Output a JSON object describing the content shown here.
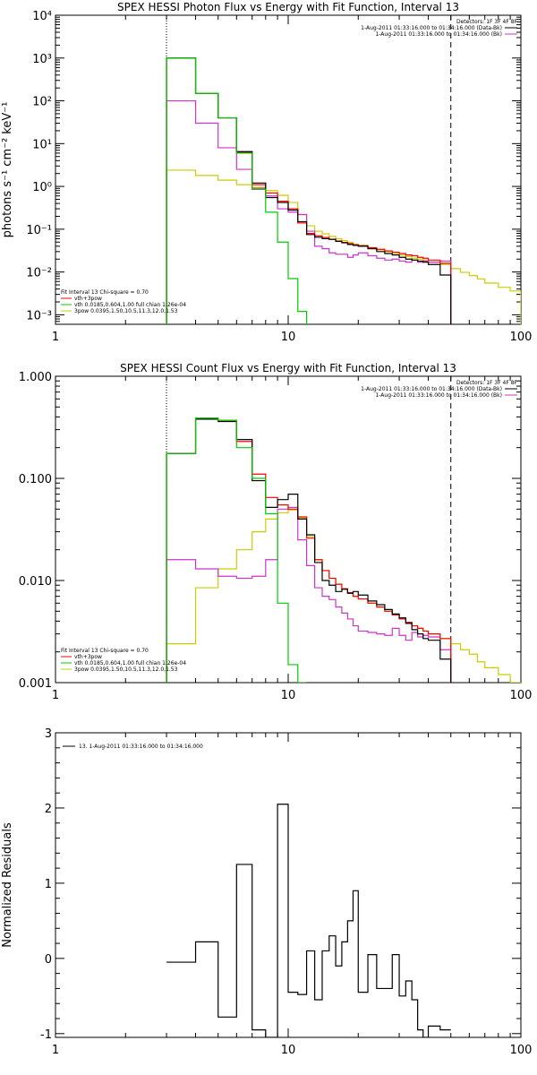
{
  "chart_data": [
    {
      "type": "line",
      "step": true,
      "title": "SPEX HESSI Photon Flux vs Energy with Fit Function, Interval 13",
      "xlabel": "",
      "ylabel": "photons s⁻¹ cm⁻² keV⁻¹",
      "xscale": "log",
      "yscale": "log",
      "xlim": [
        1,
        100
      ],
      "ylim": [
        0.0006,
        10000
      ],
      "xticks": [
        {
          "v": 1,
          "label": "1"
        },
        {
          "v": 10,
          "label": "10"
        },
        {
          "v": 100,
          "label": "100"
        }
      ],
      "yticks": [
        {
          "v": 0.001,
          "label": "10⁻³"
        },
        {
          "v": 0.01,
          "label": "10⁻²"
        },
        {
          "v": 0.1,
          "label": "10⁻¹"
        },
        {
          "v": 1,
          "label": "10⁰"
        },
        {
          "v": 10,
          "label": "10¹"
        },
        {
          "v": 100,
          "label": "10²"
        },
        {
          "v": 1000,
          "label": "10³"
        },
        {
          "v": 10000,
          "label": "10⁴"
        }
      ],
      "vlines": [
        {
          "x": 3,
          "style": "dotted"
        },
        {
          "x": 50,
          "style": "dashed"
        }
      ],
      "legend_top_right": [
        {
          "text": "Detectors: 1F 3F 4F 8F"
        },
        {
          "text": "1-Aug-2011 01:33:16.000 to 01:34:16.000 (Data-Bk)",
          "color": "#000000"
        },
        {
          "text": "1-Aug-2011 01:33:16.000 to 01:34:16.000 (Bk)",
          "color": "#cc33cc"
        }
      ],
      "legend_bottom_left": [
        {
          "text": "Fit Interval 13   Chi-square = 0.70"
        },
        {
          "text": "vth+3pow",
          "color": "#ff0000"
        },
        {
          "text": "vth 0.0185,0.604,1.00   full chian 1.26e-04",
          "color": "#00cc00"
        },
        {
          "text": "3pow 0.0395,1.50,10.5,11.3,12.0,1.53",
          "color": "#cccc00"
        }
      ],
      "edges": [
        3,
        4,
        5,
        6,
        7,
        8,
        9,
        10,
        11,
        12,
        13,
        14,
        15,
        16,
        17,
        18,
        19,
        20,
        22,
        24,
        26,
        28,
        30,
        32,
        34,
        36,
        38,
        40,
        45,
        50,
        55,
        60,
        65,
        70,
        80,
        90,
        100
      ],
      "series": [
        {
          "name": "Data-Bk",
          "color": "#000000",
          "values": [
            1000,
            150,
            40,
            6.5,
            1.2,
            0.55,
            0.42,
            0.28,
            0.15,
            0.075,
            0.065,
            0.06,
            0.058,
            0.052,
            0.048,
            0.044,
            0.042,
            0.04,
            0.035,
            0.03,
            0.027,
            0.025,
            0.022,
            0.02,
            0.019,
            0.018,
            0.017,
            0.015,
            0.0085
          ]
        },
        {
          "name": "vth+3pow",
          "color": "#ff0000",
          "values": [
            1000,
            150,
            40,
            6.2,
            1.1,
            0.7,
            0.45,
            0.3,
            0.14,
            0.08,
            0.07,
            0.064,
            0.058,
            0.053,
            0.049,
            0.046,
            0.043,
            0.041,
            0.037,
            0.034,
            0.031,
            0.029,
            0.027,
            0.025,
            0.024,
            0.022,
            0.021,
            0.019,
            0.016
          ]
        },
        {
          "name": "vth",
          "color": "#00cc00",
          "values": [
            1000,
            150,
            40,
            6,
            0.85,
            0.25,
            0.05,
            0.007,
            0.0012
          ]
        },
        {
          "name": "3pow",
          "color": "#cccc00",
          "values": [
            2.4,
            1.8,
            1.4,
            1.1,
            0.95,
            0.8,
            0.62,
            0.42,
            0.22,
            0.12,
            0.09,
            0.078,
            0.068,
            0.06,
            0.054,
            0.049,
            0.045,
            0.042,
            0.037,
            0.033,
            0.03,
            0.027,
            0.025,
            0.023,
            0.021,
            0.02,
            0.019,
            0.017,
            0.015,
            0.012,
            0.0098,
            0.0082,
            0.0069,
            0.0055,
            0.0044,
            0.0036
          ]
        },
        {
          "name": "Bk",
          "color": "#cc33cc",
          "values": [
            100,
            30,
            8,
            2.5,
            0.9,
            0.6,
            0.3,
            0.25,
            0.22,
            0.09,
            0.04,
            0.035,
            0.028,
            0.026,
            0.026,
            0.022,
            0.025,
            0.028,
            0.024,
            0.021,
            0.019,
            0.02,
            0.018,
            0.017,
            0.019,
            0.017,
            0.018,
            0.017,
            0.018
          ]
        }
      ]
    },
    {
      "type": "line",
      "step": true,
      "title": "SPEX HESSI Count Flux vs Energy with Fit Function, Interval 13",
      "xlabel": "",
      "ylabel": "",
      "xscale": "log",
      "yscale": "log",
      "xlim": [
        1,
        100
      ],
      "ylim": [
        0.001,
        1.0
      ],
      "xticks": [
        {
          "v": 1,
          "label": "1"
        },
        {
          "v": 10,
          "label": "10"
        },
        {
          "v": 100,
          "label": "100"
        }
      ],
      "yticks": [
        {
          "v": 0.001,
          "label": "0.001"
        },
        {
          "v": 0.01,
          "label": "0.010"
        },
        {
          "v": 0.1,
          "label": "0.100"
        },
        {
          "v": 1,
          "label": "1.000"
        }
      ],
      "vlines": [
        {
          "x": 3,
          "style": "dotted"
        },
        {
          "x": 50,
          "style": "dashed"
        }
      ],
      "legend_top_right": [
        {
          "text": "Detectors: 1F 3F 4F 8F"
        },
        {
          "text": "1-Aug-2011 01:33:16.000 to 01:34:16.000 (Data-Bk)",
          "color": "#000000"
        },
        {
          "text": "1-Aug-2011 01:33:16.000 to 01:34:16.000 (Bk)",
          "color": "#cc33cc"
        }
      ],
      "legend_bottom_left": [
        {
          "text": "Fit Interval 13   Chi-square = 0.70"
        },
        {
          "text": "vth+3pow",
          "color": "#ff0000"
        },
        {
          "text": "vth 0.0185,0.604,1.00   full chian 1.26e-04",
          "color": "#00cc00"
        },
        {
          "text": "3pow 0.0395,1.50,10.5,11.3,12.0,1.53",
          "color": "#cccc00"
        }
      ],
      "edges": [
        3,
        4,
        5,
        6,
        7,
        8,
        9,
        10,
        11,
        12,
        13,
        14,
        15,
        16,
        17,
        18,
        19,
        20,
        22,
        24,
        26,
        28,
        30,
        32,
        34,
        36,
        38,
        40,
        45,
        50,
        55,
        60,
        65,
        70,
        80,
        90,
        100
      ],
      "series": [
        {
          "name": "Data-Bk",
          "color": "#000000",
          "values": [
            0.175,
            0.38,
            0.36,
            0.24,
            0.095,
            0.052,
            0.062,
            0.07,
            0.04,
            0.028,
            0.015,
            0.01,
            0.009,
            0.0078,
            0.0082,
            0.0075,
            0.0078,
            0.0072,
            0.0063,
            0.0058,
            0.0052,
            0.0047,
            0.0043,
            0.0038,
            0.0033,
            0.003,
            0.0027,
            0.0026,
            0.0017
          ]
        },
        {
          "name": "vth+3pow",
          "color": "#ff0000",
          "values": [
            0.175,
            0.39,
            0.37,
            0.23,
            0.11,
            0.065,
            0.055,
            0.05,
            0.042,
            0.026,
            0.016,
            0.0125,
            0.0105,
            0.0092,
            0.0083,
            0.0076,
            0.007,
            0.0066,
            0.006,
            0.0055,
            0.005,
            0.0046,
            0.0042,
            0.0039,
            0.0036,
            0.0034,
            0.0032,
            0.003,
            0.0027
          ]
        },
        {
          "name": "vth",
          "color": "#00cc00",
          "values": [
            0.175,
            0.39,
            0.37,
            0.2,
            0.1,
            0.045,
            0.006,
            0.0015,
            0.0003
          ]
        },
        {
          "name": "3pow",
          "color": "#cccc00",
          "values": [
            0.0024,
            0.0085,
            0.013,
            0.02,
            0.03,
            0.04,
            0.046,
            0.049,
            0.041,
            0.027,
            0.016,
            0.0125,
            0.0105,
            0.0092,
            0.0083,
            0.0076,
            0.007,
            0.0066,
            0.006,
            0.0055,
            0.005,
            0.0046,
            0.0042,
            0.0039,
            0.0036,
            0.0034,
            0.0032,
            0.003,
            0.0027,
            0.0024,
            0.0021,
            0.0019,
            0.0016,
            0.0014,
            0.0012,
            0.001
          ]
        },
        {
          "name": "Bk",
          "color": "#cc33cc",
          "values": [
            0.016,
            0.013,
            0.011,
            0.0105,
            0.011,
            0.016,
            0.05,
            0.052,
            0.025,
            0.014,
            0.0085,
            0.007,
            0.0065,
            0.0055,
            0.0048,
            0.0042,
            0.0036,
            0.0032,
            0.0031,
            0.003,
            0.0029,
            0.0034,
            0.0029,
            0.0026,
            0.0031,
            0.0028,
            0.0029,
            0.0028,
            0.0021
          ]
        }
      ]
    },
    {
      "type": "line",
      "step": true,
      "title": "",
      "xlabel": "",
      "ylabel": "Normalized Residuals",
      "xscale": "log",
      "yscale": "linear",
      "xlim": [
        1,
        100
      ],
      "ylim": [
        -1.05,
        3
      ],
      "xticks": [
        {
          "v": 1,
          "label": "1"
        },
        {
          "v": 10,
          "label": "10"
        },
        {
          "v": 100,
          "label": "100"
        }
      ],
      "yticks": [
        {
          "v": -1,
          "label": "-1"
        },
        {
          "v": 0,
          "label": "0"
        },
        {
          "v": 1,
          "label": "1"
        },
        {
          "v": 2,
          "label": "2"
        },
        {
          "v": 3,
          "label": "3"
        }
      ],
      "legend_top_left": [
        {
          "text": "13.  1-Aug-2011 01:33:16.000 to 01:34:16.000",
          "color": "#000000"
        }
      ],
      "edges": [
        3,
        4,
        5,
        6,
        7,
        8,
        9,
        10,
        11,
        12,
        13,
        14,
        15,
        16,
        17,
        18,
        19,
        20,
        22,
        24,
        26,
        28,
        30,
        32,
        34,
        36,
        38,
        40,
        45,
        50
      ],
      "series": [
        {
          "name": "13.",
          "color": "#000000",
          "values": [
            -0.05,
            0.22,
            -0.78,
            1.25,
            -0.95,
            -1.1,
            2.05,
            -0.45,
            -0.48,
            0.1,
            -0.55,
            0.1,
            0.3,
            -0.1,
            0.22,
            0.5,
            0.9,
            -0.45,
            0.05,
            -0.4,
            -0.4,
            0.05,
            -0.5,
            -0.3,
            -0.55,
            -0.95,
            -1.1,
            -0.9,
            -0.95
          ]
        }
      ]
    }
  ]
}
